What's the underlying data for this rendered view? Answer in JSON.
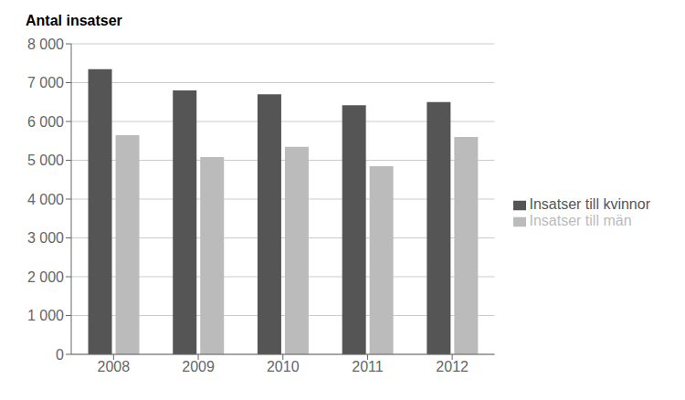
{
  "chart_data": {
    "type": "bar",
    "title": "Antal insatser",
    "categories": [
      "2008",
      "2009",
      "2010",
      "2011",
      "2012"
    ],
    "series": [
      {
        "name": "Insatser till kvinnor",
        "color": "#555555",
        "values": [
          7350,
          6800,
          6700,
          6420,
          6500
        ]
      },
      {
        "name": "Insatser till män",
        "color": "#bbbbbb",
        "values": [
          5650,
          5080,
          5350,
          4850,
          5600
        ]
      }
    ],
    "ylim": [
      0,
      8000
    ],
    "yticks": [
      0,
      {
        "value": 1000,
        "label": "1 000"
      },
      {
        "value": 2000,
        "label": "2 000"
      },
      {
        "value": 3000,
        "label": "3 000"
      },
      {
        "value": 4000,
        "label": "4 000"
      },
      {
        "value": 5000,
        "label": "5 000"
      },
      {
        "value": 6000,
        "label": "6 000"
      },
      {
        "value": 7000,
        "label": "7 000"
      },
      {
        "value": 8000,
        "label": "8 000"
      }
    ],
    "grid": true,
    "legend": "right"
  }
}
